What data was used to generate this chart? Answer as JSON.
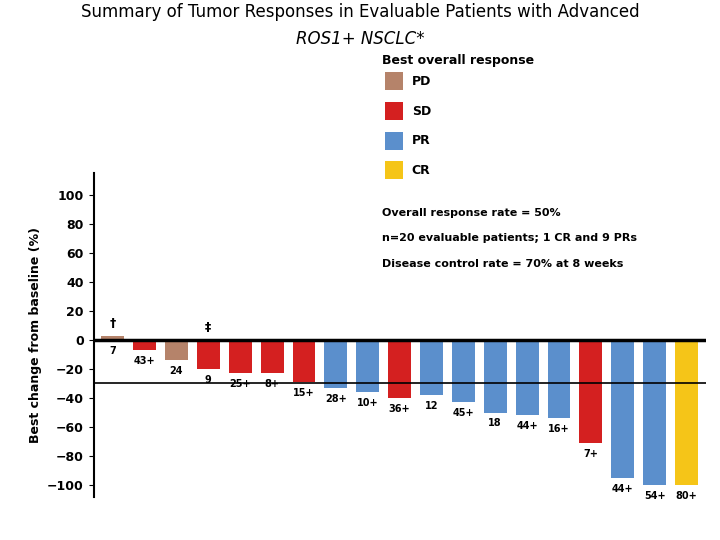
{
  "title_line1": "Summary of Tumor Responses in Evaluable Patients with Advanced",
  "title_line2": "ROS1+ NSCLC*",
  "ylabel": "Best change from baseline (%)",
  "legend_title": "Best overall response",
  "legend_items": [
    "PD",
    "SD",
    "PR",
    "CR"
  ],
  "legend_colors": [
    "#b5836a",
    "#d42020",
    "#5b8fcc",
    "#f5c518"
  ],
  "annotation_lines": [
    "Overall response rate = 50%",
    "n=20 evaluable patients; 1 CR and 9 PRs",
    "Disease control rate = 70% at 8 weeks"
  ],
  "reference_line_y": -30,
  "ylim": [
    -108,
    115
  ],
  "yticks": [
    100,
    80,
    60,
    40,
    20,
    0,
    -20,
    -40,
    -60,
    -80,
    -100
  ],
  "bars": [
    {
      "label": "7",
      "value": 3,
      "color": "#b5836a",
      "symbol": "†"
    },
    {
      "label": "43+",
      "value": -7,
      "color": "#d42020",
      "symbol": null
    },
    {
      "label": "24",
      "value": -14,
      "color": "#b5836a",
      "symbol": null
    },
    {
      "label": "9",
      "value": -20,
      "color": "#d42020",
      "symbol": "‡"
    },
    {
      "label": "25+",
      "value": -23,
      "color": "#d42020",
      "symbol": null
    },
    {
      "label": "8+",
      "value": -23,
      "color": "#d42020",
      "symbol": null
    },
    {
      "label": "15+",
      "value": -29,
      "color": "#d42020",
      "symbol": null
    },
    {
      "label": "28+",
      "value": -33,
      "color": "#5b8fcc",
      "symbol": null
    },
    {
      "label": "10+",
      "value": -36,
      "color": "#5b8fcc",
      "symbol": null
    },
    {
      "label": "36+",
      "value": -40,
      "color": "#d42020",
      "symbol": null
    },
    {
      "label": "12",
      "value": -38,
      "color": "#5b8fcc",
      "symbol": null
    },
    {
      "label": "45+",
      "value": -43,
      "color": "#5b8fcc",
      "symbol": null
    },
    {
      "label": "18",
      "value": -50,
      "color": "#5b8fcc",
      "symbol": null
    },
    {
      "label": "44+",
      "value": -52,
      "color": "#5b8fcc",
      "symbol": null
    },
    {
      "label": "16+",
      "value": -54,
      "color": "#5b8fcc",
      "symbol": null
    },
    {
      "label": "7+",
      "value": -71,
      "color": "#d42020",
      "symbol": null
    },
    {
      "label": "44+",
      "value": -95,
      "color": "#5b8fcc",
      "symbol": null
    },
    {
      "label": "54+",
      "value": -100,
      "color": "#5b8fcc",
      "symbol": null
    },
    {
      "label": "80+",
      "value": -100,
      "color": "#f5c518",
      "symbol": null
    }
  ],
  "background_color": "#ffffff"
}
